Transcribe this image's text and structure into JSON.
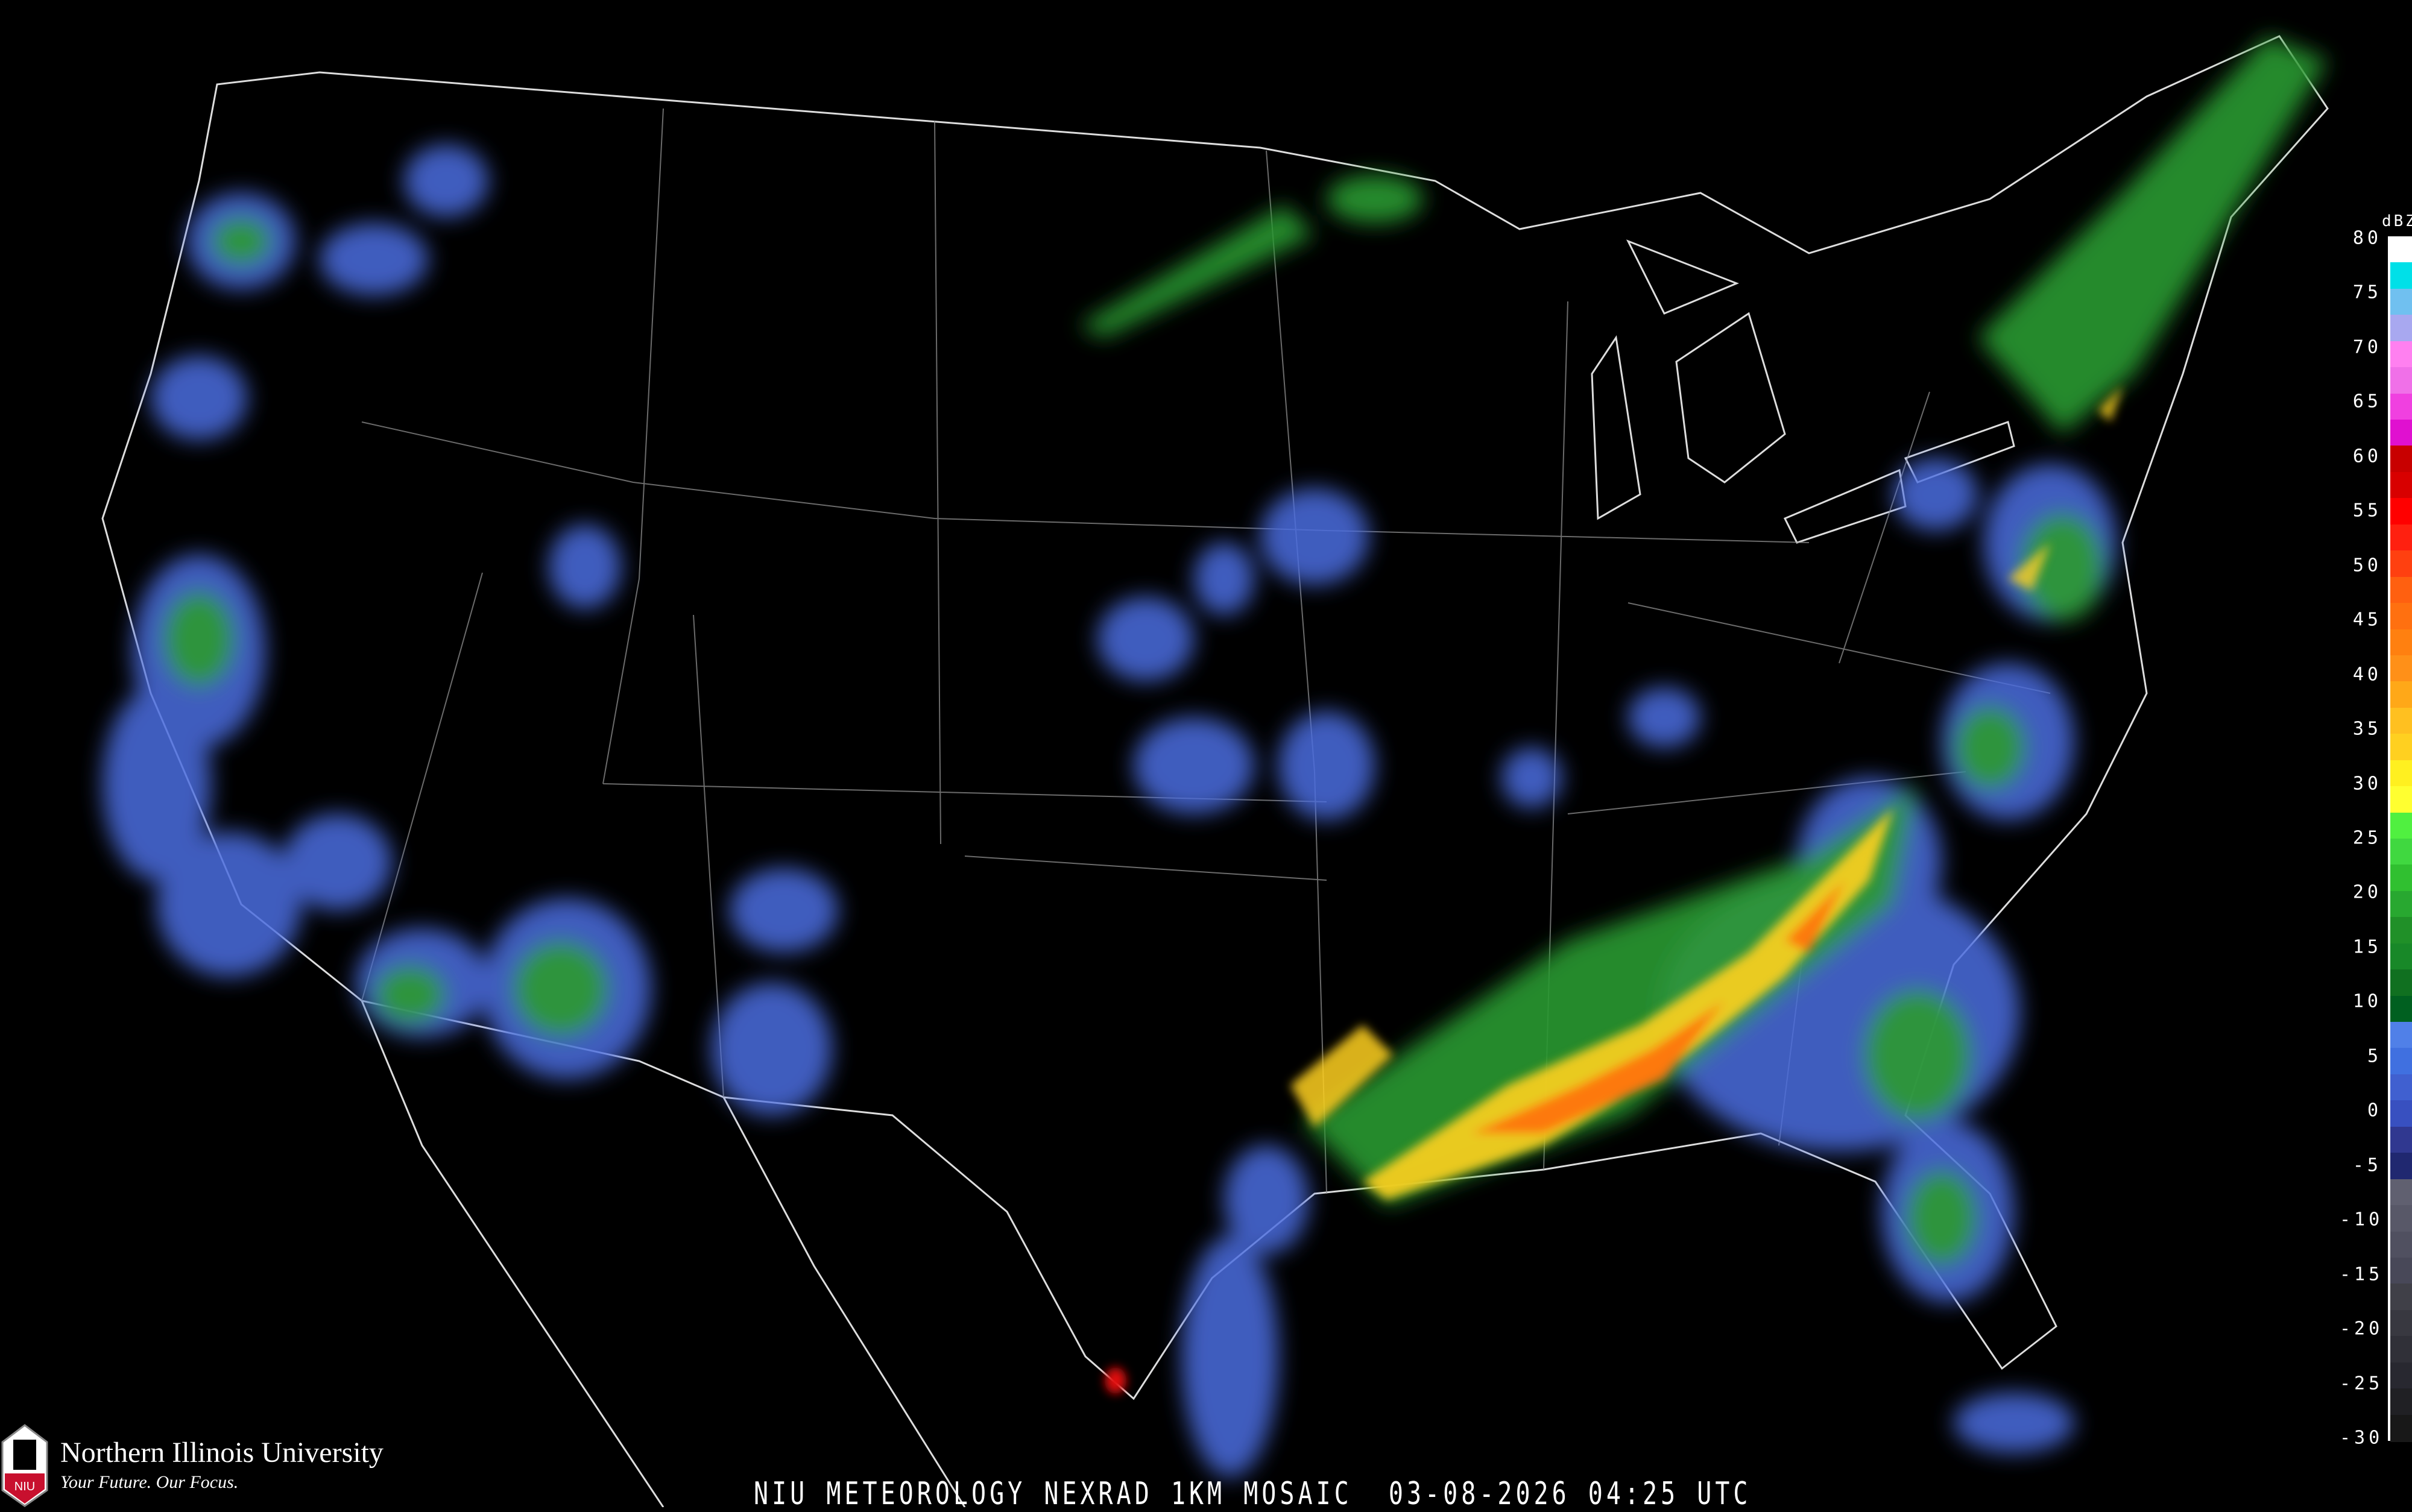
{
  "caption": "NIU METEOROLOGY NEXRAD 1KM MOSAIC  03-08-2026 04:25 UTC",
  "logo": {
    "university": "Northern Illinois University",
    "tagline": "Your Future. Our Focus.",
    "shield_text": "NIU",
    "brand_color": "#c8102e"
  },
  "legend": {
    "unit": "dBZ",
    "labels": [
      "80",
      "75",
      "70",
      "65",
      "60",
      "55",
      "50",
      "45",
      "40",
      "35",
      "30",
      "25",
      "20",
      "15",
      "10",
      "5",
      "0",
      "-5",
      "-10",
      "-15",
      "-20",
      "-25",
      "-30"
    ],
    "colors": [
      "#ffffff",
      "#00e0e8",
      "#70c0f0",
      "#a8a8f0",
      "#ff80f0",
      "#f070e8",
      "#f040e0",
      "#e010d0",
      "#c80000",
      "#d80000",
      "#ff0000",
      "#ff2010",
      "#ff4010",
      "#ff6010",
      "#ff7010",
      "#ff8010",
      "#ff9018",
      "#ffa818",
      "#ffc020",
      "#ffd020",
      "#fff020",
      "#ffff30",
      "#50f040",
      "#40d840",
      "#30c030",
      "#28a830",
      "#209028",
      "#188828",
      "#107020",
      "#006020",
      "#5080e8",
      "#4070e0",
      "#4060d0",
      "#3850c0",
      "#303890",
      "#202870",
      "#606070",
      "#585868",
      "#505060",
      "#484858",
      "#404048",
      "#383840",
      "#303038",
      "#282830",
      "#202024",
      "#181818"
    ]
  },
  "radar_colors": {
    "light": "#4a6ee0",
    "moderate": "#2a9a30",
    "heavy": "#ffd020",
    "intense": "#ff7010",
    "extreme": "#e01010",
    "clutter": "#505068"
  }
}
